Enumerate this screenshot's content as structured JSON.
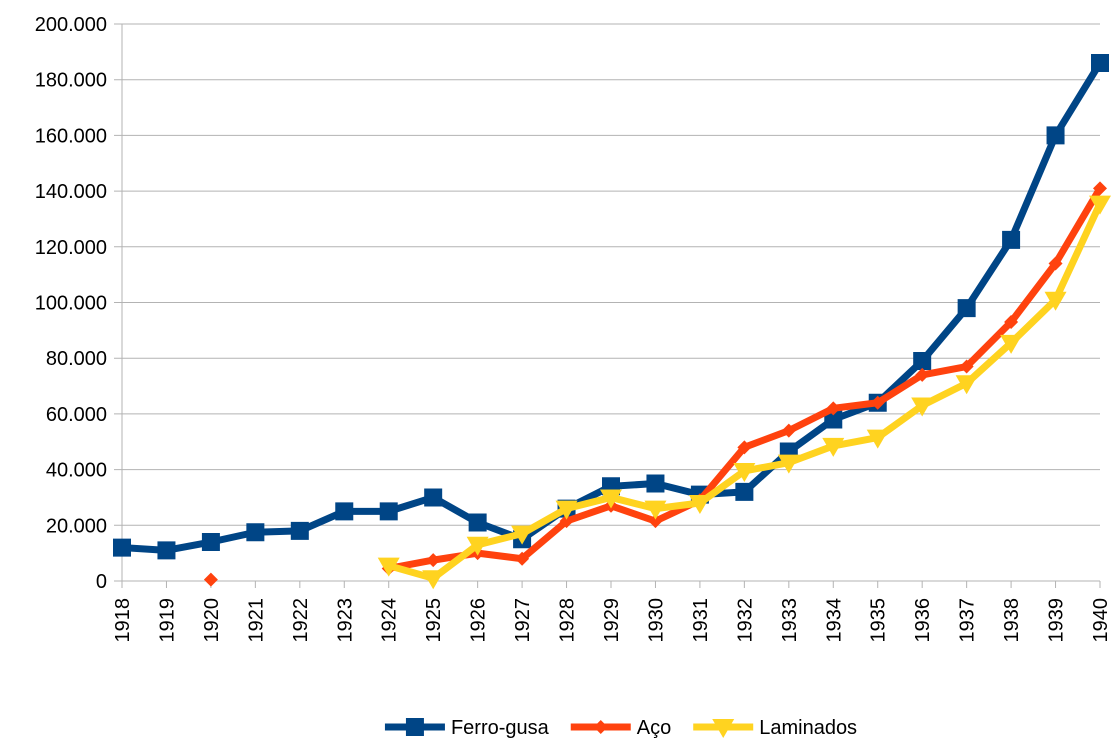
{
  "chart_data": {
    "type": "line",
    "x": [
      1918,
      1919,
      1920,
      1921,
      1922,
      1923,
      1924,
      1925,
      1926,
      1927,
      1928,
      1929,
      1930,
      1931,
      1932,
      1933,
      1934,
      1935,
      1936,
      1937,
      1938,
      1939,
      1940
    ],
    "xlim": [
      1918,
      1940
    ],
    "xticks": [
      1918,
      1919,
      1920,
      1921,
      1922,
      1923,
      1924,
      1925,
      1926,
      1927,
      1928,
      1929,
      1930,
      1931,
      1932,
      1933,
      1934,
      1935,
      1936,
      1937,
      1938,
      1939,
      1940
    ],
    "ylim": [
      0,
      200000
    ],
    "yticks": [
      0,
      {
        "value": 20000,
        "label": "20.000"
      },
      {
        "value": 40000,
        "label": "40.000"
      },
      {
        "value": 60000,
        "label": "60.000"
      },
      {
        "value": 80000,
        "label": "80.000"
      },
      {
        "value": 100000,
        "label": "100.000"
      },
      {
        "value": 120000,
        "label": "120.000"
      },
      {
        "value": 140000,
        "label": "140.000"
      },
      {
        "value": 160000,
        "label": "160.000"
      },
      {
        "value": 180000,
        "label": "180.000"
      },
      {
        "value": 200000,
        "label": "200.000"
      }
    ],
    "grid": true,
    "legend": "bottom",
    "series": [
      {
        "name": "Ferro-gusa",
        "color": "#004586",
        "marker": "square",
        "values": [
          12000,
          11000,
          14000,
          17500,
          18000,
          25000,
          25000,
          30000,
          21000,
          15000,
          26000,
          34000,
          35000,
          31000,
          32000,
          46500,
          58000,
          64000,
          79000,
          98000,
          122500,
          160000,
          186000
        ]
      },
      {
        "name": "Aço",
        "color": "#ff420e",
        "marker": "diamond",
        "values": [
          null,
          null,
          500,
          null,
          null,
          null,
          4500,
          7500,
          10000,
          8000,
          21500,
          27000,
          21500,
          29000,
          48000,
          54000,
          62000,
          64000,
          74000,
          77000,
          93000,
          114000,
          141000
        ]
      },
      {
        "name": "Laminados",
        "color": "#ffd320",
        "marker": "triangle-down",
        "values": [
          null,
          null,
          null,
          null,
          null,
          null,
          5500,
          1000,
          13000,
          17000,
          26000,
          30000,
          26000,
          28000,
          39500,
          42500,
          48500,
          51500,
          63000,
          71000,
          85500,
          101000,
          135500
        ]
      }
    ]
  }
}
